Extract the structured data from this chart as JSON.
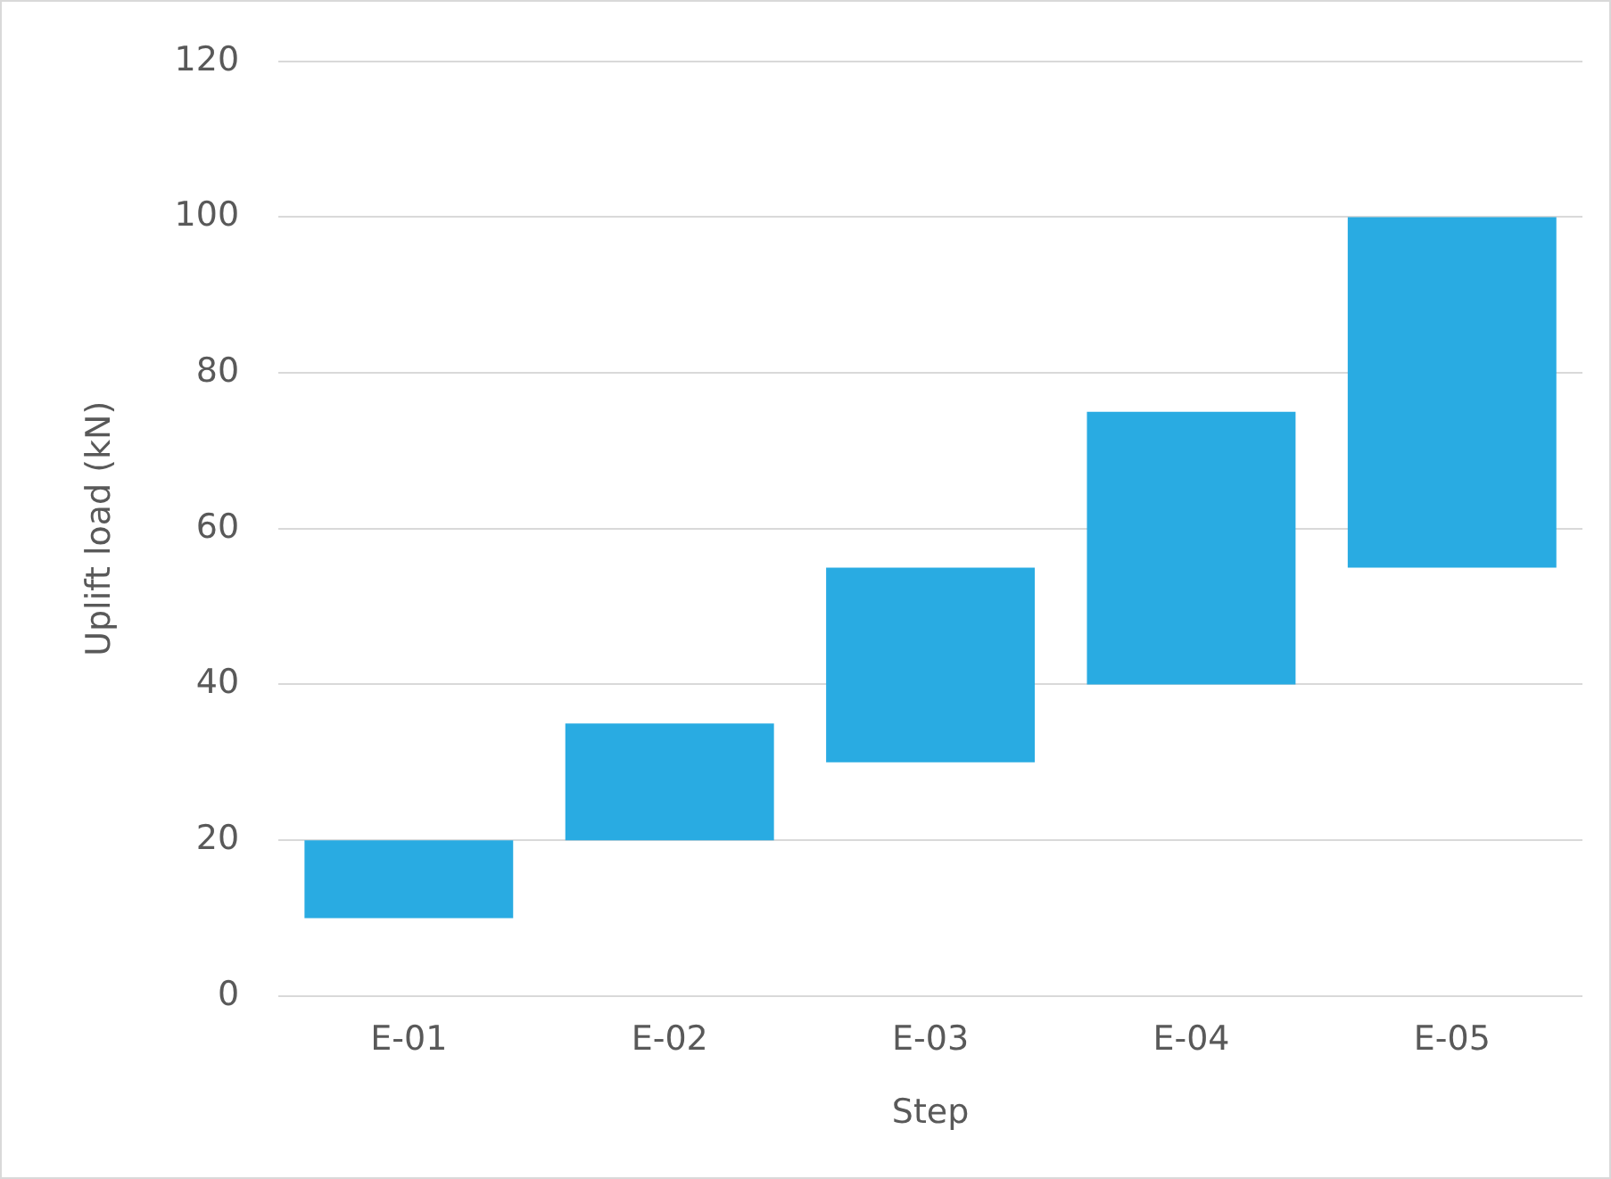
{
  "chart_data": {
    "type": "bar",
    "categories": [
      "E-01",
      "E-02",
      "E-03",
      "E-04",
      "E-05"
    ],
    "values": [
      10,
      15,
      25,
      35,
      45
    ],
    "base": [
      10,
      20,
      30,
      40,
      55
    ],
    "colors": [
      "#29abe2",
      "#29abe2",
      "#29abe2",
      "#29abe2",
      "#29abe2"
    ],
    "xlabel": "Step",
    "ylabel": "Uplift load (kN)",
    "ylim": [
      0,
      120
    ],
    "yticks": [
      0,
      20,
      40,
      60,
      80,
      100,
      120
    ],
    "grid": "y",
    "legend": false
  }
}
